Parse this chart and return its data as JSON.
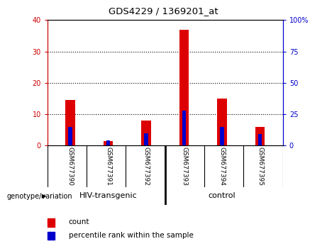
{
  "title": "GDS4229 / 1369201_at",
  "samples": [
    "GSM677390",
    "GSM677391",
    "GSM677392",
    "GSM677393",
    "GSM677394",
    "GSM677395"
  ],
  "count_values": [
    14.5,
    1.5,
    8.0,
    37.0,
    15.0,
    6.0
  ],
  "percentile_values": [
    15,
    4,
    10,
    28,
    15,
    9
  ],
  "left_ylim": [
    0,
    40
  ],
  "right_ylim": [
    0,
    100
  ],
  "left_yticks": [
    0,
    10,
    20,
    30,
    40
  ],
  "right_yticks": [
    0,
    25,
    50,
    75,
    100
  ],
  "left_yticklabels": [
    "0",
    "10",
    "20",
    "30",
    "40"
  ],
  "right_yticklabels": [
    "0",
    "25",
    "50",
    "75",
    "100%"
  ],
  "left_color": "#cc0000",
  "right_color": "#0000cc",
  "bar_red": "#dd0000",
  "bar_blue": "#0000cc",
  "bg_color": "#ffffff",
  "plot_bg_color": "#ffffff",
  "groups": [
    {
      "label": "HIV-transgenic",
      "span": [
        0,
        2
      ]
    },
    {
      "label": "control",
      "span": [
        3,
        5
      ]
    }
  ],
  "group_color": "#90ee90",
  "sample_bg_color": "#c8c8c8",
  "legend_count_color": "#dd0000",
  "legend_pct_color": "#0000cc",
  "legend_count_label": "count",
  "legend_pct_label": "percentile rank within the sample",
  "genotype_label": "genotype/variation",
  "bar_width": 0.25,
  "x_positions": [
    0,
    1,
    2,
    3,
    4,
    5
  ]
}
